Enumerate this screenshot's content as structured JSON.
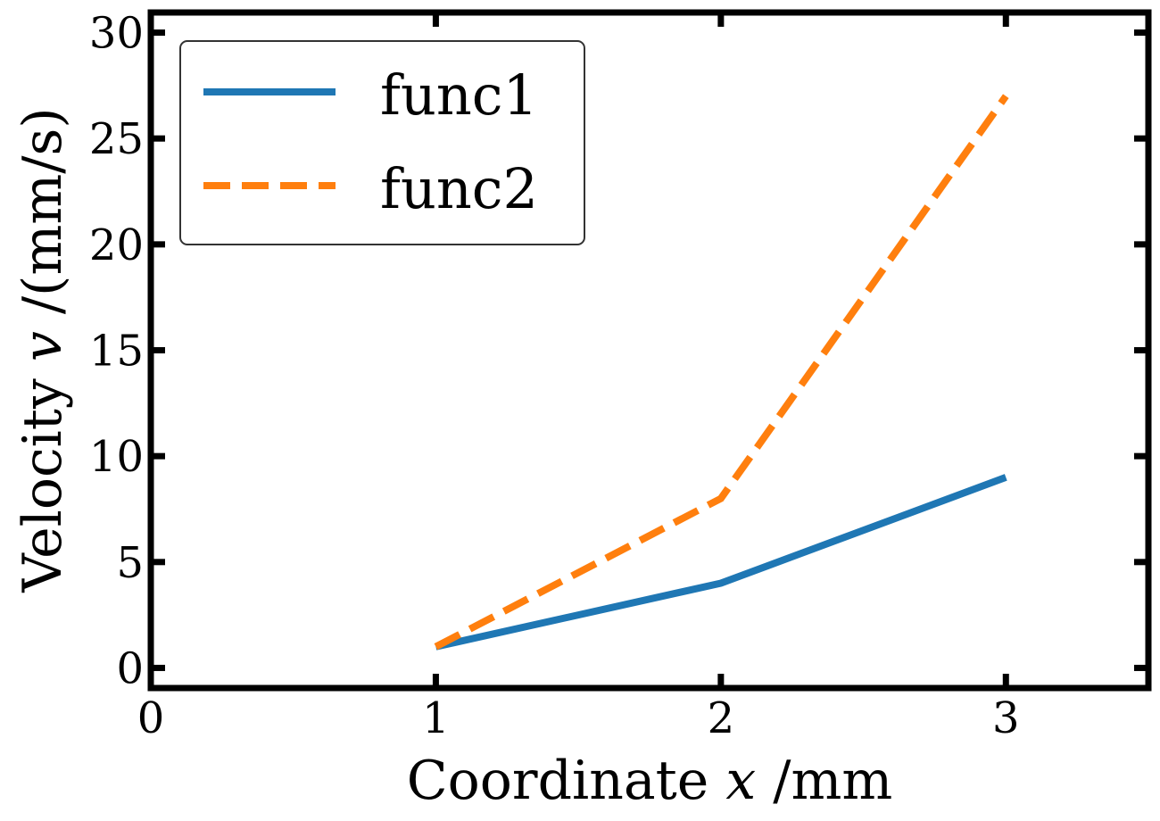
{
  "chart_data": {
    "type": "line",
    "title": "",
    "xlabel": "Coordinate x /mm",
    "xlabel_parts": {
      "pre": "Coordinate ",
      "var": "x",
      "post": " /mm"
    },
    "ylabel": "Velocity v /(mm/s)",
    "ylabel_parts": {
      "pre": "Velocity ",
      "var": "v",
      "post": " /(mm/s)"
    },
    "xlim": [
      0,
      3.5
    ],
    "ylim": [
      -0.95,
      30.95
    ],
    "xticks": [
      0,
      1,
      2,
      3
    ],
    "yticks": [
      0,
      5,
      10,
      15,
      20,
      25,
      30
    ],
    "grid": false,
    "legend_position": "top-left",
    "x": [
      1,
      2,
      3
    ],
    "series": [
      {
        "name": "func1",
        "values": [
          1,
          4,
          9
        ],
        "color": "#1f77b4",
        "style": "solid"
      },
      {
        "name": "func2",
        "values": [
          1,
          8,
          27
        ],
        "color": "#ff7f0e",
        "style": "dashed"
      }
    ]
  }
}
